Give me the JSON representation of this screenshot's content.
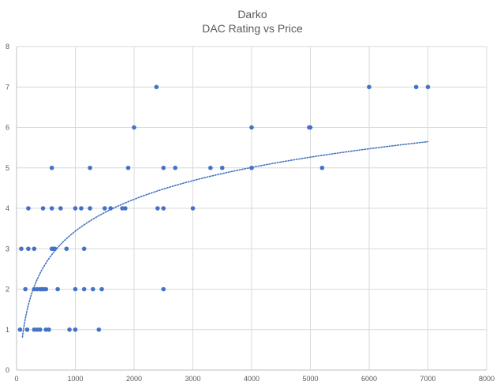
{
  "chart_data": {
    "type": "scatter",
    "title": "Darko",
    "subtitle": "DAC Rating vs Price",
    "xlabel": "",
    "ylabel": "",
    "xlim": [
      0,
      8000
    ],
    "ylim": [
      0,
      8
    ],
    "x_ticks": [
      0,
      1000,
      2000,
      3000,
      4000,
      5000,
      6000,
      7000,
      8000
    ],
    "y_ticks": [
      0,
      1,
      2,
      3,
      4,
      5,
      6,
      7,
      8
    ],
    "grid": "on",
    "legend": "none",
    "marker_color": "#4472c4",
    "trendline": {
      "type": "logarithmic",
      "style": "dotted",
      "color": "#4472c4",
      "x_range": [
        100,
        7000
      ]
    },
    "series": [
      {
        "points": [
          [
            60,
            1
          ],
          [
            180,
            1
          ],
          [
            300,
            1
          ],
          [
            350,
            1
          ],
          [
            400,
            1
          ],
          [
            500,
            1
          ],
          [
            550,
            1
          ],
          [
            900,
            1
          ],
          [
            1000,
            1
          ],
          [
            1400,
            1
          ],
          [
            150,
            2
          ],
          [
            300,
            2
          ],
          [
            350,
            2
          ],
          [
            400,
            2
          ],
          [
            430,
            2
          ],
          [
            460,
            2
          ],
          [
            500,
            2
          ],
          [
            700,
            2
          ],
          [
            1000,
            2
          ],
          [
            1150,
            2
          ],
          [
            1300,
            2
          ],
          [
            1450,
            2
          ],
          [
            2500,
            2
          ],
          [
            80,
            3
          ],
          [
            200,
            3
          ],
          [
            300,
            3
          ],
          [
            600,
            3
          ],
          [
            620,
            3
          ],
          [
            650,
            3
          ],
          [
            850,
            3
          ],
          [
            1150,
            3
          ],
          [
            200,
            4
          ],
          [
            450,
            4
          ],
          [
            600,
            4
          ],
          [
            750,
            4
          ],
          [
            1000,
            4
          ],
          [
            1100,
            4
          ],
          [
            1250,
            4
          ],
          [
            1500,
            4
          ],
          [
            1600,
            4
          ],
          [
            1800,
            4
          ],
          [
            1850,
            4
          ],
          [
            2400,
            4
          ],
          [
            2500,
            4
          ],
          [
            3000,
            4
          ],
          [
            600,
            5
          ],
          [
            1250,
            5
          ],
          [
            1900,
            5
          ],
          [
            2500,
            5
          ],
          [
            2700,
            5
          ],
          [
            3300,
            5
          ],
          [
            3500,
            5
          ],
          [
            4000,
            5
          ],
          [
            5200,
            5
          ],
          [
            2000,
            6
          ],
          [
            4000,
            6
          ],
          [
            4980,
            6
          ],
          [
            5000,
            6
          ],
          [
            2380,
            7
          ],
          [
            6000,
            7
          ],
          [
            6800,
            7
          ],
          [
            7000,
            7
          ]
        ]
      }
    ]
  }
}
